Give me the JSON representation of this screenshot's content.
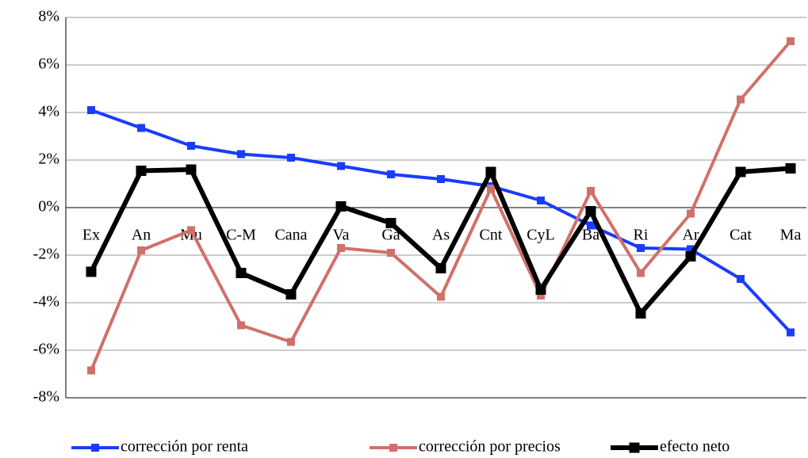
{
  "chart_data": {
    "type": "line",
    "categories": [
      "Ex",
      "An",
      "Mu",
      "C-M",
      "Cana",
      "Va",
      "Ga",
      "As",
      "Cnt",
      "CyL",
      "Ba",
      "Ri",
      "Ar",
      "Cat",
      "Ma"
    ],
    "series": [
      {
        "name": "corrección por renta",
        "color": "#1a3cff",
        "values": [
          4.1,
          3.35,
          2.6,
          2.25,
          2.1,
          1.75,
          1.4,
          1.2,
          0.9,
          0.3,
          -0.75,
          -1.7,
          -1.75,
          -3,
          -5.25
        ]
      },
      {
        "name": "corrección por precios",
        "color": "#d0706a",
        "values": [
          -6.85,
          -1.8,
          -0.95,
          -4.95,
          -5.65,
          -1.7,
          -1.9,
          -3.75,
          0.8,
          -3.7,
          0.7,
          -2.75,
          -0.25,
          4.55,
          7
        ]
      },
      {
        "name": "efecto neto",
        "color": "#000000",
        "values": [
          -2.7,
          1.55,
          1.6,
          -2.75,
          -3.65,
          0.05,
          -0.65,
          -2.55,
          1.5,
          -3.45,
          -0.15,
          -4.45,
          -2.05,
          1.5,
          1.65
        ]
      }
    ],
    "ylim": [
      -8,
      8
    ],
    "yticks": [
      {
        "value": -8,
        "label": "-8%"
      },
      {
        "value": -6,
        "label": "-6%"
      },
      {
        "value": -4,
        "label": "-4%"
      },
      {
        "value": -2,
        "label": "-2%"
      },
      {
        "value": 0,
        "label": "0%"
      },
      {
        "value": 2,
        "label": "2%"
      },
      {
        "value": 4,
        "label": "4%"
      },
      {
        "value": 6,
        "label": "6%"
      },
      {
        "value": 8,
        "label": "8%"
      }
    ],
    "grid": true,
    "legend": "bottom"
  }
}
